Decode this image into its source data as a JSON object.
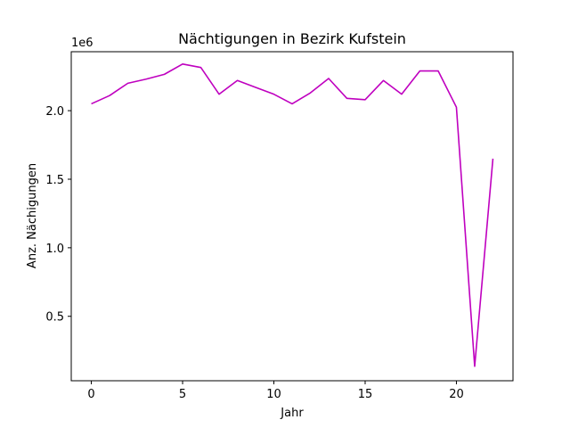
{
  "chart_data": {
    "type": "line",
    "title": "Nächtigungen in Bezirk Kufstein",
    "xlabel": "Jahr",
    "ylabel": "Anz. Nächigungen",
    "y_offset_label": "1e6",
    "xlim": [
      -1.1,
      23.1
    ],
    "ylim": [
      30000,
      2430000
    ],
    "x_ticks": [
      0,
      5,
      10,
      15,
      20
    ],
    "x_tick_labels": [
      "0",
      "5",
      "10",
      "15",
      "20"
    ],
    "y_ticks": [
      500000,
      1000000,
      1500000,
      2000000
    ],
    "y_tick_labels": [
      "0.5",
      "1.0",
      "1.5",
      "2.0"
    ],
    "grid": false,
    "line_color": "#bf00bf",
    "series": [
      {
        "x": [
          0,
          1,
          2,
          3,
          4,
          5,
          6,
          7,
          8,
          9,
          10,
          11,
          12,
          13,
          14,
          15,
          16,
          17,
          18,
          19,
          20,
          21,
          22
        ],
        "values": [
          2050000,
          2110000,
          2200000,
          2230000,
          2265000,
          2340000,
          2315000,
          2120000,
          2220000,
          2170000,
          2120000,
          2050000,
          2130000,
          2235000,
          2090000,
          2080000,
          2220000,
          2120000,
          2290000,
          2290000,
          2025000,
          135000,
          1650000
        ]
      }
    ]
  }
}
